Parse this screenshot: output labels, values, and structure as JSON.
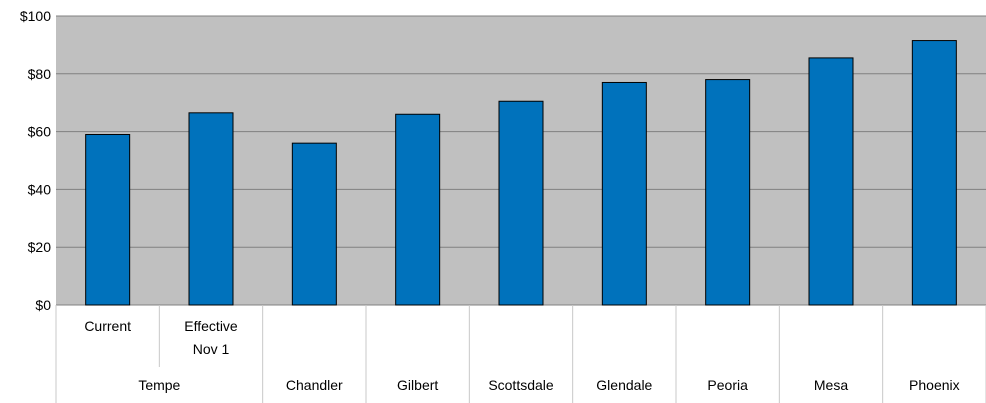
{
  "chart_data": {
    "type": "bar",
    "categories": [
      "Current",
      "Effective Nov 1",
      "Chandler",
      "Gilbert",
      "Scottsdale",
      "Glendale",
      "Peoria",
      "Mesa",
      "Phoenix"
    ],
    "category_lines": [
      [
        "Current"
      ],
      [
        "Effective",
        "Nov 1"
      ],
      [
        "Chandler"
      ],
      [
        "Gilbert"
      ],
      [
        "Scottsdale"
      ],
      [
        "Glendale"
      ],
      [
        "Peoria"
      ],
      [
        "Mesa"
      ],
      [
        "Phoenix"
      ]
    ],
    "group_labels": [
      {
        "label": "Tempe",
        "span": [
          0,
          1
        ]
      }
    ],
    "values": [
      59,
      66.5,
      56,
      66,
      70.5,
      77,
      78,
      85.5,
      91.5
    ],
    "y_ticks": [
      "$0",
      "$20",
      "$40",
      "$60",
      "$80",
      "$100"
    ],
    "y_tick_values": [
      0,
      20,
      40,
      60,
      80,
      100
    ],
    "ylim": [
      0,
      100
    ],
    "grid": true,
    "title": "",
    "xlabel": "",
    "ylabel": "",
    "colors": {
      "bar": "#0072BC",
      "bar_outline": "#000000",
      "plot_bg": "#C0C0C0",
      "gridline": "#808080"
    }
  }
}
